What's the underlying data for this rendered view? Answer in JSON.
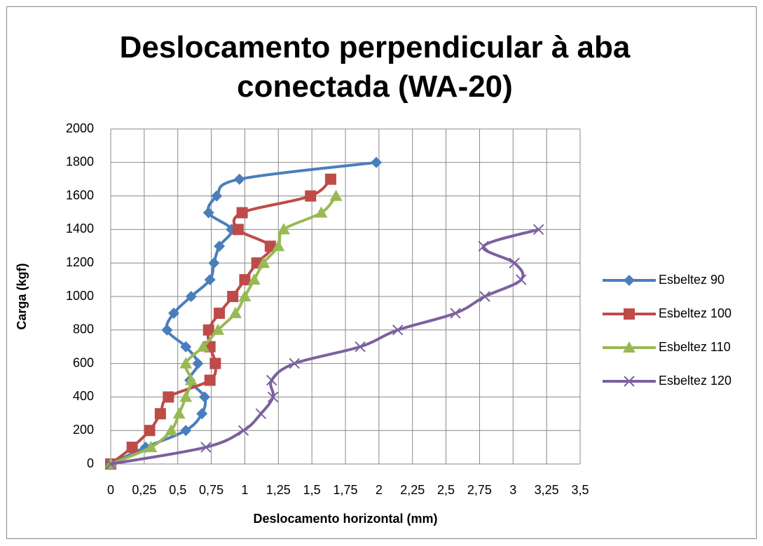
{
  "chart_data": {
    "type": "line",
    "title": "Deslocamento perpendicular à aba conectada (WA-20)",
    "x_label": "Deslocamento horizontal (mm)",
    "y_label": "Carga (kgf)",
    "xlim": [
      0,
      3.5
    ],
    "xticks": [
      0,
      {
        "value": 0.25,
        "label": "0,25"
      },
      {
        "value": 0.5,
        "label": "0,5"
      },
      {
        "value": 0.75,
        "label": "0,75"
      },
      1,
      {
        "value": 1.25,
        "label": "1,25"
      },
      {
        "value": 1.5,
        "label": "1,5"
      },
      {
        "value": 1.75,
        "label": "1,75"
      },
      2,
      {
        "value": 2.25,
        "label": "2,25"
      },
      {
        "value": 2.5,
        "label": "2,5"
      },
      {
        "value": 2.75,
        "label": "2,75"
      },
      3,
      {
        "value": 3.25,
        "label": "3,25"
      },
      {
        "value": 3.5,
        "label": "3,5"
      }
    ],
    "ylim": [
      0,
      2000
    ],
    "yticks": [
      0,
      200,
      400,
      600,
      800,
      1000,
      1200,
      1400,
      1600,
      1800,
      2000
    ],
    "grid": true,
    "legend": "right",
    "series": [
      {
        "name": "Esbeltez 90",
        "color": "#4a7ebb",
        "marker": "diamond",
        "x": [
          0,
          0.26,
          0.56,
          0.68,
          0.7,
          0.59,
          0.65,
          0.56,
          0.42,
          0.47,
          0.6,
          0.74,
          0.77,
          0.81,
          0.9,
          0.73,
          0.79,
          0.96,
          1.98
        ],
        "values": [
          0,
          100,
          200,
          300,
          400,
          500,
          600,
          700,
          800,
          900,
          1000,
          1100,
          1200,
          1300,
          1400,
          1500,
          1600,
          1700,
          1800
        ]
      },
      {
        "name": "Esbeltez 100",
        "color": "#be4b48",
        "marker": "square",
        "x": [
          0,
          0.16,
          0.29,
          0.37,
          0.43,
          0.74,
          0.78,
          0.74,
          0.73,
          0.81,
          0.91,
          1.0,
          1.09,
          1.19,
          0.95,
          0.98,
          1.49,
          1.64
        ],
        "values": [
          0,
          100,
          200,
          300,
          400,
          500,
          600,
          700,
          800,
          900,
          1000,
          1100,
          1200,
          1300,
          1400,
          1500,
          1600,
          1700
        ]
      },
      {
        "name": "Esbeltez 110",
        "color": "#98b954",
        "marker": "triangle",
        "x": [
          0,
          0.3,
          0.45,
          0.51,
          0.56,
          0.6,
          0.56,
          0.69,
          0.8,
          0.93,
          1.0,
          1.07,
          1.14,
          1.25,
          1.29,
          1.57,
          1.68
        ],
        "values": [
          0,
          100,
          200,
          300,
          400,
          500,
          600,
          700,
          800,
          900,
          1000,
          1100,
          1200,
          1300,
          1400,
          1500,
          1600
        ]
      },
      {
        "name": "Esbeltez 120",
        "color": "#7d60a0",
        "marker": "x",
        "x": [
          0,
          0.71,
          0.99,
          1.12,
          1.21,
          1.2,
          1.37,
          1.86,
          2.14,
          2.57,
          2.79,
          3.06,
          3.01,
          2.78,
          3.19
        ],
        "values": [
          0,
          100,
          200,
          300,
          400,
          500,
          600,
          700,
          800,
          900,
          1000,
          1100,
          1200,
          1300,
          1400
        ]
      }
    ]
  }
}
